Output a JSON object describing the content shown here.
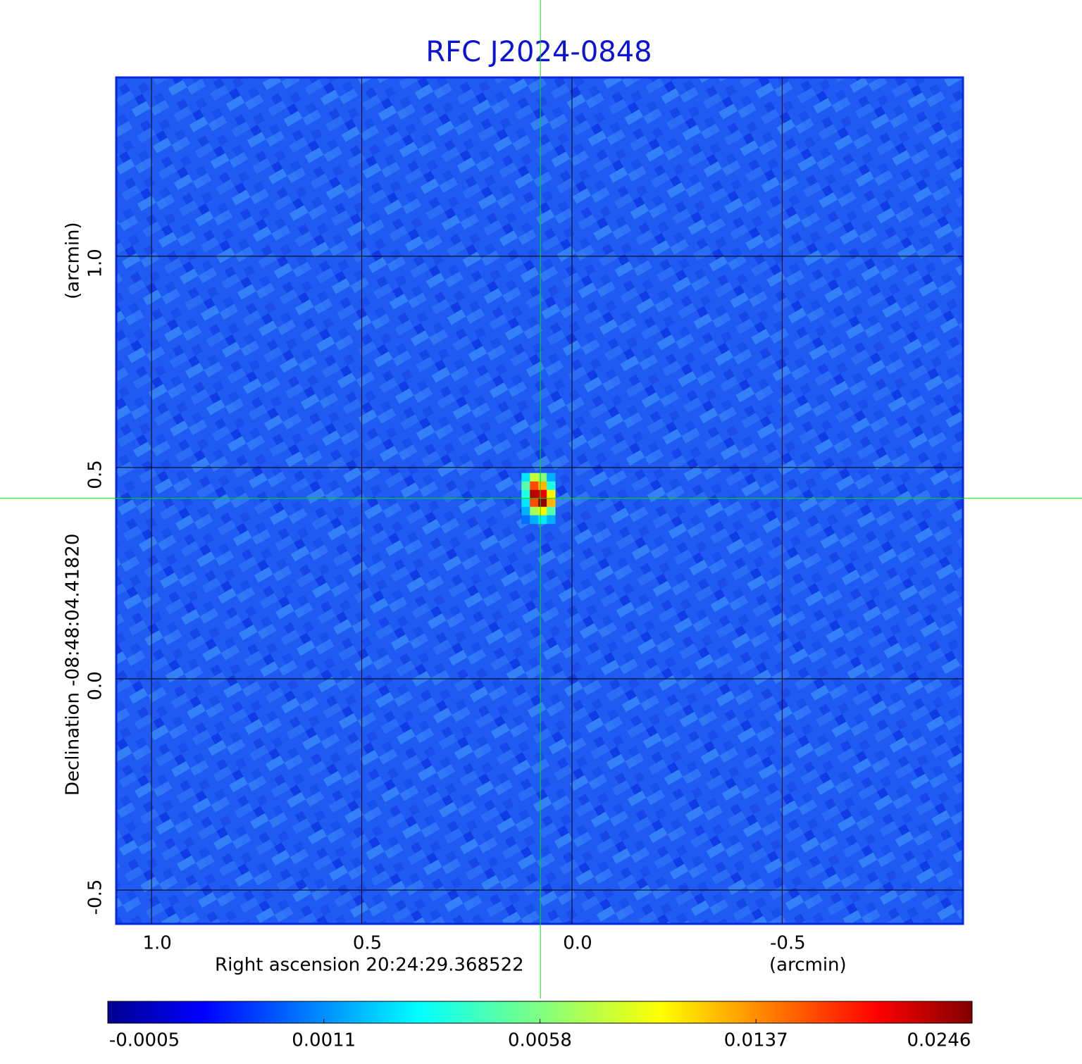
{
  "chart_data": {
    "type": "image",
    "title": "RFC J2024-0848",
    "xlabel": "Right ascension  20:24:29.368522",
    "xunit": "(arcmin)",
    "ylabel": "Declination  -08:48:04.41820",
    "yunit": "(arcmin)",
    "xlim": [
      1.084,
      -0.93
    ],
    "ylim": [
      -0.58,
      1.423
    ],
    "xticks": [
      {
        "value": 1,
        "label": "1.0"
      },
      0.5,
      {
        "value": 0,
        "label": "0.0"
      },
      -0.5
    ],
    "yticks": [
      -0.5,
      {
        "value": 0,
        "label": "0.0"
      },
      0.5,
      {
        "value": 1,
        "label": "1.0"
      }
    ],
    "grid": true,
    "colormap": "jet",
    "colorbar_ticks": [
      -0.0005,
      0.0011,
      0.0058,
      0.0137,
      0.0246
    ],
    "marker": {
      "x": 0.075,
      "y": 0.427,
      "color": "#00e000"
    },
    "source_x": [
      0.11,
      0.09,
      0.07,
      0.05
    ],
    "source_y": [
      0.477,
      0.457,
      0.437,
      0.417,
      0.397,
      0.377
    ],
    "source_z": [
      [
        0.003,
        0.008,
        0.006,
        0.002
      ],
      [
        0.005,
        0.016,
        0.012,
        0.004
      ],
      [
        0.004,
        0.022,
        0.02,
        0.01
      ],
      [
        0.003,
        0.016,
        0.024,
        0.012
      ],
      [
        0.002,
        0.007,
        0.01,
        0.005
      ],
      [
        0.001,
        0.002,
        0.003,
        0.002
      ]
    ]
  }
}
